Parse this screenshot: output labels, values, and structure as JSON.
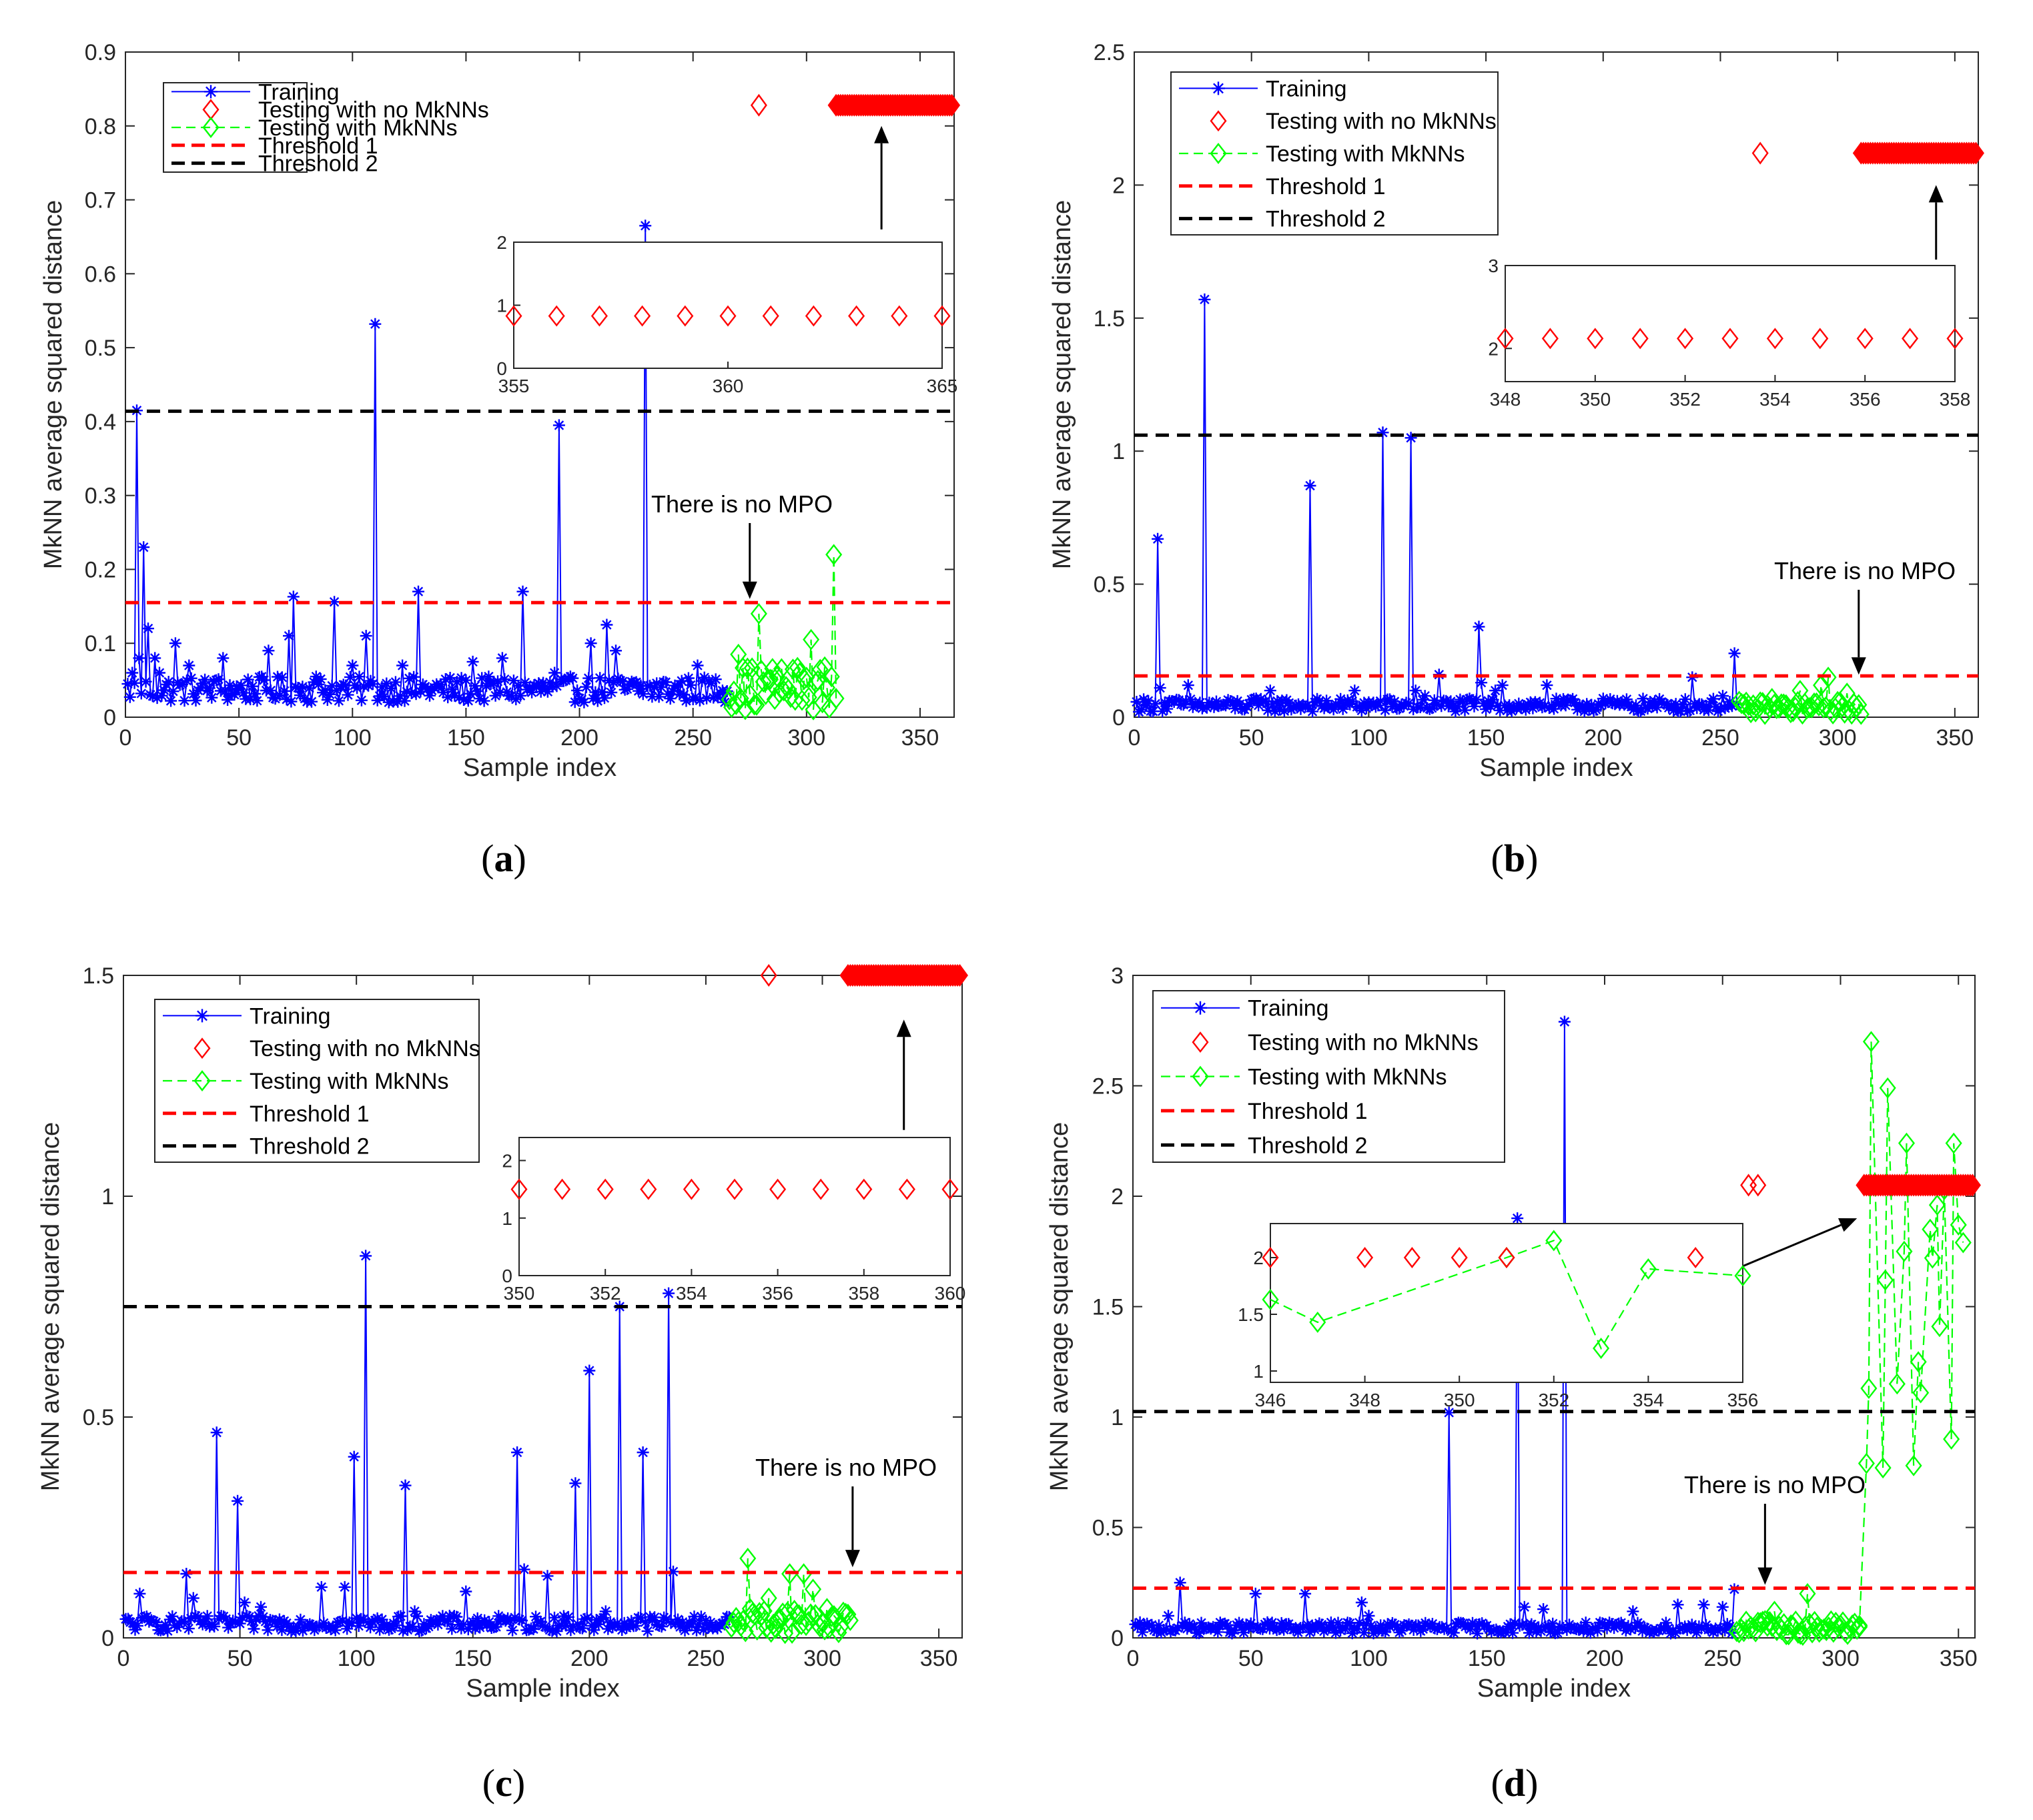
{
  "figure": {
    "panel_labels": [
      {
        "open": "(",
        "letter": "a",
        "close": ")"
      },
      {
        "open": "(",
        "letter": "b",
        "close": ")"
      },
      {
        "open": "(",
        "letter": "c",
        "close": ")"
      },
      {
        "open": "(",
        "letter": "d",
        "close": ")"
      }
    ]
  },
  "colors": {
    "training": "#0000ff",
    "testing_no_mknn": "#ff0000",
    "testing_mknn": "#00ff00",
    "threshold1": "#ff0000",
    "threshold2": "#000000"
  },
  "chart_data": [
    {
      "type": "line",
      "panel": "a",
      "title": "",
      "xlabel": "Sample index",
      "ylabel": "MkNN average squared distance",
      "xlim": [
        0,
        365
      ],
      "ylim": [
        0,
        0.9
      ],
      "xticks": [
        "0",
        "50",
        "100",
        "150",
        "200",
        "250",
        "300",
        "350"
      ],
      "yticks": [
        "0",
        "0.1",
        "0.2",
        "0.3",
        "0.4",
        "0.5",
        "0.6",
        "0.7",
        "0.8",
        "0.9"
      ],
      "legend": {
        "position": "top-left",
        "entries": [
          "Training",
          "Testing with no MkNNs",
          "Testing with MkNNs",
          "Threshold 1",
          "Threshold 2"
        ]
      },
      "training_range": [
        1,
        265
      ],
      "training_base": [
        0.02,
        0.035
      ],
      "training_peaks": [
        [
          3,
          0.06
        ],
        [
          5,
          0.415
        ],
        [
          6,
          0.08
        ],
        [
          8,
          0.23
        ],
        [
          10,
          0.12
        ],
        [
          13,
          0.08
        ],
        [
          15,
          0.06
        ],
        [
          22,
          0.1
        ],
        [
          28,
          0.07
        ],
        [
          33,
          0.04
        ],
        [
          40,
          0.05
        ],
        [
          43,
          0.08
        ],
        [
          63,
          0.09
        ],
        [
          72,
          0.11
        ],
        [
          74,
          0.163
        ],
        [
          84,
          0.055
        ],
        [
          92,
          0.156
        ],
        [
          100,
          0.07
        ],
        [
          106,
          0.11
        ],
        [
          110,
          0.532
        ],
        [
          122,
          0.07
        ],
        [
          129,
          0.17
        ],
        [
          153,
          0.075
        ],
        [
          166,
          0.08
        ],
        [
          175,
          0.17
        ],
        [
          189,
          0.06
        ],
        [
          191,
          0.395
        ],
        [
          205,
          0.1
        ],
        [
          212,
          0.125
        ],
        [
          216,
          0.09
        ],
        [
          229,
          0.665
        ],
        [
          252,
          0.07
        ]
      ],
      "testing_mknn_range": [
        266,
        313
      ],
      "testing_mknn_base": [
        0.01,
        0.06
      ],
      "testing_mknn_peaks": [
        [
          270,
          0.085
        ],
        [
          279,
          0.14
        ],
        [
          287,
          0.055
        ],
        [
          297,
          0.06
        ],
        [
          302,
          0.105
        ],
        [
          309,
          0.04
        ],
        [
          312,
          0.22
        ]
      ],
      "testing_no_mknn_isolated": [
        [
          279,
          0.828
        ]
      ],
      "testing_no_mknn_band": {
        "from": 313,
        "to": 364,
        "y": 0.828
      },
      "threshold1": 0.155,
      "threshold2": 0.414,
      "annotations": [
        {
          "text": "There is no MPO",
          "arrow_to": [
            275,
            0.16
          ]
        }
      ],
      "zoom_arrow": {
        "from": [
          333,
          0.66
        ],
        "to": [
          333,
          0.8
        ]
      },
      "inset": {
        "xlim": [
          355,
          365
        ],
        "ylim": [
          0,
          2
        ],
        "xticks": [
          "355",
          "360",
          "365"
        ],
        "yticks": [
          "0",
          "1",
          "2"
        ],
        "testing_no_mknn": [
          [
            355,
            0.83
          ],
          [
            356,
            0.83
          ],
          [
            357,
            0.83
          ],
          [
            358,
            0.83
          ],
          [
            359,
            0.83
          ],
          [
            360,
            0.83
          ],
          [
            361,
            0.83
          ],
          [
            362,
            0.83
          ],
          [
            363,
            0.83
          ],
          [
            364,
            0.83
          ],
          [
            365,
            0.83
          ]
        ],
        "testing_mknn": []
      }
    },
    {
      "type": "line",
      "panel": "b",
      "title": "",
      "xlabel": "Sample index",
      "ylabel": "MkNN average squared distance",
      "xlim": [
        0,
        360
      ],
      "ylim": [
        0,
        2.5
      ],
      "xticks": [
        "0",
        "50",
        "100",
        "150",
        "200",
        "250",
        "300",
        "350"
      ],
      "yticks": [
        "0",
        "0.5",
        "1",
        "1.5",
        "2",
        "2.5"
      ],
      "legend": {
        "position": "top-left",
        "entries": [
          "Training",
          "Testing with no MkNNs",
          "Testing with MkNNs",
          "Threshold 1",
          "Threshold 2"
        ]
      },
      "training_range": [
        1,
        257
      ],
      "training_base": [
        0.02,
        0.05
      ],
      "training_peaks": [
        [
          10,
          0.67
        ],
        [
          11,
          0.11
        ],
        [
          16,
          0.06
        ],
        [
          23,
          0.12
        ],
        [
          30,
          1.57
        ],
        [
          52,
          0.07
        ],
        [
          58,
          0.1
        ],
        [
          75,
          0.87
        ],
        [
          94,
          0.1
        ],
        [
          106,
          1.07
        ],
        [
          118,
          1.05
        ],
        [
          120,
          0.1
        ],
        [
          124,
          0.08
        ],
        [
          130,
          0.16
        ],
        [
          147,
          0.34
        ],
        [
          148,
          0.13
        ],
        [
          154,
          0.1
        ],
        [
          157,
          0.12
        ],
        [
          176,
          0.12
        ],
        [
          200,
          0.07
        ],
        [
          238,
          0.15
        ],
        [
          251,
          0.08
        ],
        [
          256,
          0.24
        ]
      ],
      "testing_mknn_range": [
        258,
        310
      ],
      "testing_mknn_base": [
        0.01,
        0.05
      ],
      "testing_mknn_peaks": [
        [
          272,
          0.07
        ],
        [
          284,
          0.1
        ],
        [
          293,
          0.12
        ],
        [
          296,
          0.15
        ],
        [
          304,
          0.09
        ]
      ],
      "testing_no_mknn_isolated": [
        [
          267,
          2.12
        ]
      ],
      "testing_no_mknn_band": {
        "from": 310,
        "to": 359,
        "y": 2.12
      },
      "threshold1": 0.155,
      "threshold2": 1.06,
      "annotations": [
        {
          "text": "There is no MPO",
          "arrow_to": [
            309,
            0.16
          ]
        }
      ],
      "zoom_arrow": {
        "from": [
          342,
          1.72
        ],
        "to": [
          342,
          2.0
        ]
      },
      "inset": {
        "xlim": [
          348,
          358
        ],
        "ylim": [
          1.6,
          3
        ],
        "xticks": [
          "348",
          "350",
          "352",
          "354",
          "356",
          "358"
        ],
        "yticks": [
          "2",
          "3"
        ],
        "testing_no_mknn": [
          [
            348,
            2.12
          ],
          [
            349,
            2.12
          ],
          [
            350,
            2.12
          ],
          [
            351,
            2.12
          ],
          [
            352,
            2.12
          ],
          [
            353,
            2.12
          ],
          [
            354,
            2.12
          ],
          [
            355,
            2.12
          ],
          [
            356,
            2.12
          ],
          [
            357,
            2.12
          ],
          [
            358,
            2.12
          ]
        ],
        "testing_mknn": []
      }
    },
    {
      "type": "line",
      "panel": "c",
      "title": "",
      "xlabel": "Sample index",
      "ylabel": "MkNN average squared distance",
      "xlim": [
        0,
        360
      ],
      "ylim": [
        0,
        1.5
      ],
      "xticks": [
        "0",
        "50",
        "100",
        "150",
        "200",
        "250",
        "300",
        "350"
      ],
      "yticks": [
        "0",
        "0.5",
        "1",
        "1.5"
      ],
      "legend": {
        "position": "top-left",
        "entries": [
          "Training",
          "Testing with no MkNNs",
          "Testing with MkNNs",
          "Threshold 1",
          "Threshold 2"
        ]
      },
      "training_range": [
        1,
        260
      ],
      "training_base": [
        0.015,
        0.035
      ],
      "training_peaks": [
        [
          7,
          0.1
        ],
        [
          27,
          0.145
        ],
        [
          30,
          0.09
        ],
        [
          40,
          0.465
        ],
        [
          49,
          0.31
        ],
        [
          52,
          0.08
        ],
        [
          59,
          0.07
        ],
        [
          85,
          0.115
        ],
        [
          95,
          0.115
        ],
        [
          99,
          0.41
        ],
        [
          104,
          0.865
        ],
        [
          121,
          0.345
        ],
        [
          125,
          0.06
        ],
        [
          140,
          0.05
        ],
        [
          147,
          0.105
        ],
        [
          169,
          0.42
        ],
        [
          172,
          0.155
        ],
        [
          182,
          0.14
        ],
        [
          194,
          0.35
        ],
        [
          200,
          0.605
        ],
        [
          207,
          0.06
        ],
        [
          213,
          0.75
        ],
        [
          223,
          0.42
        ],
        [
          234,
          0.78
        ],
        [
          236,
          0.15
        ]
      ],
      "testing_mknn_range": [
        261,
        312
      ],
      "testing_mknn_base": [
        0.01,
        0.06
      ],
      "testing_mknn_peaks": [
        [
          268,
          0.18
        ],
        [
          277,
          0.09
        ],
        [
          286,
          0.145
        ],
        [
          292,
          0.145
        ],
        [
          296,
          0.11
        ],
        [
          305,
          0.05
        ]
      ],
      "testing_no_mknn_isolated": [
        [
          277,
          1.5
        ]
      ],
      "testing_no_mknn_band": {
        "from": 311,
        "to": 359,
        "y": 1.5
      },
      "threshold1": 0.148,
      "threshold2": 0.75,
      "annotations": [
        {
          "text": "There is no MPO",
          "arrow_to": [
            313,
            0.16
          ]
        }
      ],
      "zoom_arrow": {
        "from": [
          335,
          1.15
        ],
        "to": [
          335,
          1.4
        ]
      },
      "inset": {
        "xlim": [
          350,
          360
        ],
        "ylim": [
          0,
          2.4
        ],
        "xticks": [
          "350",
          "352",
          "354",
          "356",
          "358",
          "360"
        ],
        "yticks": [
          "0",
          "1",
          "2"
        ],
        "testing_no_mknn": [
          [
            350,
            1.5
          ],
          [
            351,
            1.5
          ],
          [
            352,
            1.5
          ],
          [
            353,
            1.5
          ],
          [
            354,
            1.5
          ],
          [
            355,
            1.5
          ],
          [
            356,
            1.5
          ],
          [
            357,
            1.5
          ],
          [
            358,
            1.5
          ],
          [
            359,
            1.5
          ],
          [
            360,
            1.5
          ]
        ],
        "testing_mknn": []
      }
    },
    {
      "type": "line",
      "panel": "d",
      "title": "",
      "xlabel": "Sample index",
      "ylabel": "MkNN average squared distance",
      "xlim": [
        0,
        357
      ],
      "ylim": [
        0,
        3
      ],
      "xticks": [
        "0",
        "50",
        "100",
        "150",
        "200",
        "250",
        "300",
        "350"
      ],
      "yticks": [
        "0",
        "0.5",
        "1",
        "1.5",
        "2",
        "2.5",
        "3"
      ],
      "legend": {
        "position": "top-left",
        "entries": [
          "Training",
          "Testing with no MkNNs",
          "Testing with MkNNs",
          "Threshold 1",
          "Threshold 2"
        ]
      },
      "training_range": [
        1,
        255
      ],
      "training_base": [
        0.02,
        0.05
      ],
      "training_peaks": [
        [
          15,
          0.1
        ],
        [
          20,
          0.25
        ],
        [
          52,
          0.2
        ],
        [
          57,
          0.07
        ],
        [
          73,
          0.2
        ],
        [
          97,
          0.16
        ],
        [
          100,
          0.1
        ],
        [
          134,
          1.02
        ],
        [
          163,
          1.9
        ],
        [
          166,
          0.14
        ],
        [
          174,
          0.13
        ],
        [
          183,
          2.79
        ],
        [
          190,
          0.05
        ],
        [
          212,
          0.12
        ],
        [
          231,
          0.15
        ],
        [
          242,
          0.15
        ],
        [
          250,
          0.14
        ],
        [
          255,
          0.22
        ]
      ],
      "testing_mknn_range": [
        256,
        308
      ],
      "testing_mknn_base": [
        0.01,
        0.07
      ],
      "testing_mknn_peaks": [
        [
          272,
          0.12
        ],
        [
          286,
          0.2
        ],
        [
          298,
          0.07
        ]
      ],
      "testing_mknn_tail": [
        [
          308,
          0.05
        ],
        [
          311,
          0.79
        ],
        [
          312,
          1.13
        ],
        [
          313,
          2.7
        ],
        [
          318,
          0.77
        ],
        [
          319,
          1.62
        ],
        [
          320,
          2.49
        ],
        [
          324,
          1.15
        ],
        [
          327,
          1.75
        ],
        [
          328,
          2.24
        ],
        [
          331,
          0.78
        ],
        [
          333,
          1.25
        ],
        [
          334,
          1.11
        ],
        [
          338,
          1.85
        ],
        [
          339,
          1.72
        ],
        [
          341,
          1.96
        ],
        [
          342,
          1.41
        ],
        [
          344,
          2.03
        ],
        [
          347,
          0.9
        ],
        [
          348,
          2.24
        ],
        [
          350,
          1.87
        ],
        [
          352,
          1.79
        ]
      ],
      "testing_no_mknn_isolated": [
        [
          261,
          2.05
        ],
        [
          265,
          2.05
        ]
      ],
      "testing_no_mknn_band": {
        "from": 310,
        "to": 356,
        "y": 2.05
      },
      "threshold1": 0.225,
      "threshold2": 1.025,
      "annotations": [
        {
          "text": "There is no MPO",
          "arrow_to": [
            268,
            0.24
          ]
        }
      ],
      "zoom_arrow": {
        "from": [
          240,
          1.6
        ],
        "to": [
          307,
          1.9
        ]
      },
      "inset": {
        "xlim": [
          346,
          356
        ],
        "ylim": [
          0.9,
          2.3
        ],
        "xticks": [
          "346",
          "348",
          "350",
          "352",
          "354",
          "356"
        ],
        "yticks": [
          "1",
          "1.5",
          "2"
        ],
        "testing_no_mknn": [
          [
            346,
            2.0
          ],
          [
            348,
            2.0
          ],
          [
            349,
            2.0
          ],
          [
            350,
            2.0
          ],
          [
            351,
            2.0
          ],
          [
            355,
            2.0
          ]
        ],
        "testing_mknn": [
          [
            346,
            1.63
          ],
          [
            347,
            1.43
          ],
          [
            351,
            2.0
          ],
          [
            352,
            2.15
          ],
          [
            353,
            1.2
          ],
          [
            354,
            1.9
          ],
          [
            356,
            1.84
          ]
        ]
      }
    }
  ]
}
